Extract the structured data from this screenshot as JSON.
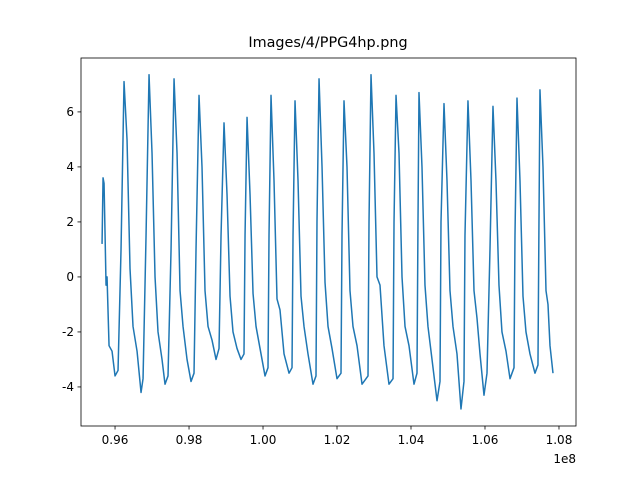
{
  "chart_data": {
    "type": "line",
    "title": "Images/4/PPG4hp.png",
    "x_offset_label": "1e8",
    "xlim": [
      0.9508,
      1.0846
    ],
    "ylim": [
      -5.42,
      7.96
    ],
    "xticks": [
      0.96,
      0.98,
      {
        "value": 1,
        "label": "1.00"
      },
      1.02,
      1.04,
      1.06,
      1.08
    ],
    "yticks": [
      -4,
      -2,
      0,
      2,
      4,
      6
    ],
    "grid": false,
    "series": [
      {
        "color": "#1f77b4",
        "x": [
          0.95649,
          0.95676,
          0.95703,
          0.95757,
          0.95784,
          0.95838,
          0.95919,
          0.96,
          0.96081,
          0.96162,
          0.96243,
          0.96324,
          0.96405,
          0.96486,
          0.96595,
          0.96703,
          0.96757,
          0.96838,
          0.96919,
          0.97,
          0.97081,
          0.97162,
          0.9727,
          0.97351,
          0.97432,
          0.97514,
          0.97595,
          0.97676,
          0.97757,
          0.97838,
          0.97946,
          0.98054,
          0.98135,
          0.98189,
          0.9827,
          0.98351,
          0.98432,
          0.98514,
          0.98622,
          0.9873,
          0.98811,
          0.98865,
          0.98946,
          0.99027,
          0.99108,
          0.99189,
          0.99297,
          0.99405,
          0.99486,
          0.99514,
          0.99568,
          0.99649,
          0.9973,
          0.99811,
          0.99919,
          1.00054,
          1.00135,
          1.00162,
          1.00216,
          1.00297,
          1.00378,
          1.00459,
          1.00568,
          1.00703,
          1.00784,
          1.00811,
          1.00865,
          1.00946,
          1.01027,
          1.01108,
          1.01216,
          1.01351,
          1.01432,
          1.01459,
          1.01514,
          1.01595,
          1.01676,
          1.01757,
          1.01865,
          1.02,
          1.02108,
          1.02135,
          1.02189,
          1.0227,
          1.02351,
          1.02432,
          1.02541,
          1.02676,
          1.02838,
          1.02865,
          1.02919,
          1.03,
          1.03081,
          1.03162,
          1.0327,
          1.03405,
          1.03514,
          1.03541,
          1.03595,
          1.03676,
          1.03757,
          1.03838,
          1.03946,
          1.04081,
          1.04162,
          1.04189,
          1.04216,
          1.04297,
          1.04378,
          1.04459,
          1.04568,
          1.04703,
          1.04784,
          1.04811,
          1.04892,
          1.04973,
          1.05054,
          1.05135,
          1.05243,
          1.05351,
          1.05432,
          1.05459,
          1.0554,
          1.05622,
          1.05703,
          1.05784,
          1.05865,
          1.05973,
          1.06054,
          1.06135,
          1.06216,
          1.06297,
          1.06378,
          1.06459,
          1.06568,
          1.06676,
          1.06784,
          1.06811,
          1.06865,
          1.06946,
          1.07027,
          1.07108,
          1.07216,
          1.07351,
          1.07432,
          1.07459,
          1.07486,
          1.07568,
          1.07649,
          1.07703,
          1.07757,
          1.07838
        ],
        "values": [
          1.2,
          3.6,
          3.4,
          -0.3,
          0,
          -2.5,
          -2.7,
          -3.6,
          -3.4,
          1.0,
          7.1,
          5.0,
          0.3,
          -1.8,
          -2.7,
          -4.2,
          -3.7,
          1.5,
          7.35,
          4.5,
          0.0,
          -2.0,
          -3.0,
          -3.9,
          -3.6,
          1.0,
          7.2,
          4.5,
          -0.5,
          -1.8,
          -3.0,
          -3.8,
          -3.5,
          1.0,
          6.6,
          4.0,
          -0.5,
          -1.8,
          -2.3,
          -3.0,
          -2.6,
          1.5,
          5.6,
          3.0,
          -0.7,
          -2.0,
          -2.6,
          -3.0,
          -2.8,
          1.5,
          5.8,
          3.0,
          -0.6,
          -1.8,
          -2.6,
          -3.6,
          -3.3,
          1.5,
          6.6,
          3.5,
          -0.8,
          -1.2,
          -2.8,
          -3.5,
          -3.3,
          1.5,
          6.4,
          3.5,
          -0.7,
          -1.8,
          -2.8,
          -3.9,
          -3.6,
          2.0,
          7.2,
          4.0,
          -0.2,
          -1.8,
          -2.6,
          -3.7,
          -3.5,
          1.5,
          6.4,
          4.0,
          -0.5,
          -1.8,
          -2.5,
          -3.9,
          -3.6,
          2.0,
          7.35,
          4.5,
          0.0,
          -0.3,
          -2.5,
          -3.9,
          -3.7,
          2.0,
          6.6,
          4.5,
          0.0,
          -1.8,
          -2.5,
          -3.9,
          -3.5,
          2.0,
          6.7,
          4.0,
          -0.3,
          -1.8,
          -3.0,
          -4.5,
          -3.8,
          2.0,
          6.3,
          3.5,
          -0.5,
          -1.8,
          -2.8,
          -4.8,
          -3.8,
          1.5,
          6.4,
          3.5,
          -0.5,
          -1.5,
          -2.8,
          -4.3,
          -3.5,
          1.0,
          6.2,
          3.5,
          -0.3,
          -2.0,
          -2.7,
          -3.7,
          -3.3,
          1.5,
          6.5,
          3.5,
          -0.7,
          -2.0,
          -2.8,
          -3.5,
          -3.2,
          2.0,
          6.8,
          4.0,
          -0.5,
          -1.0,
          -2.5,
          -3.5
        ]
      }
    ]
  }
}
